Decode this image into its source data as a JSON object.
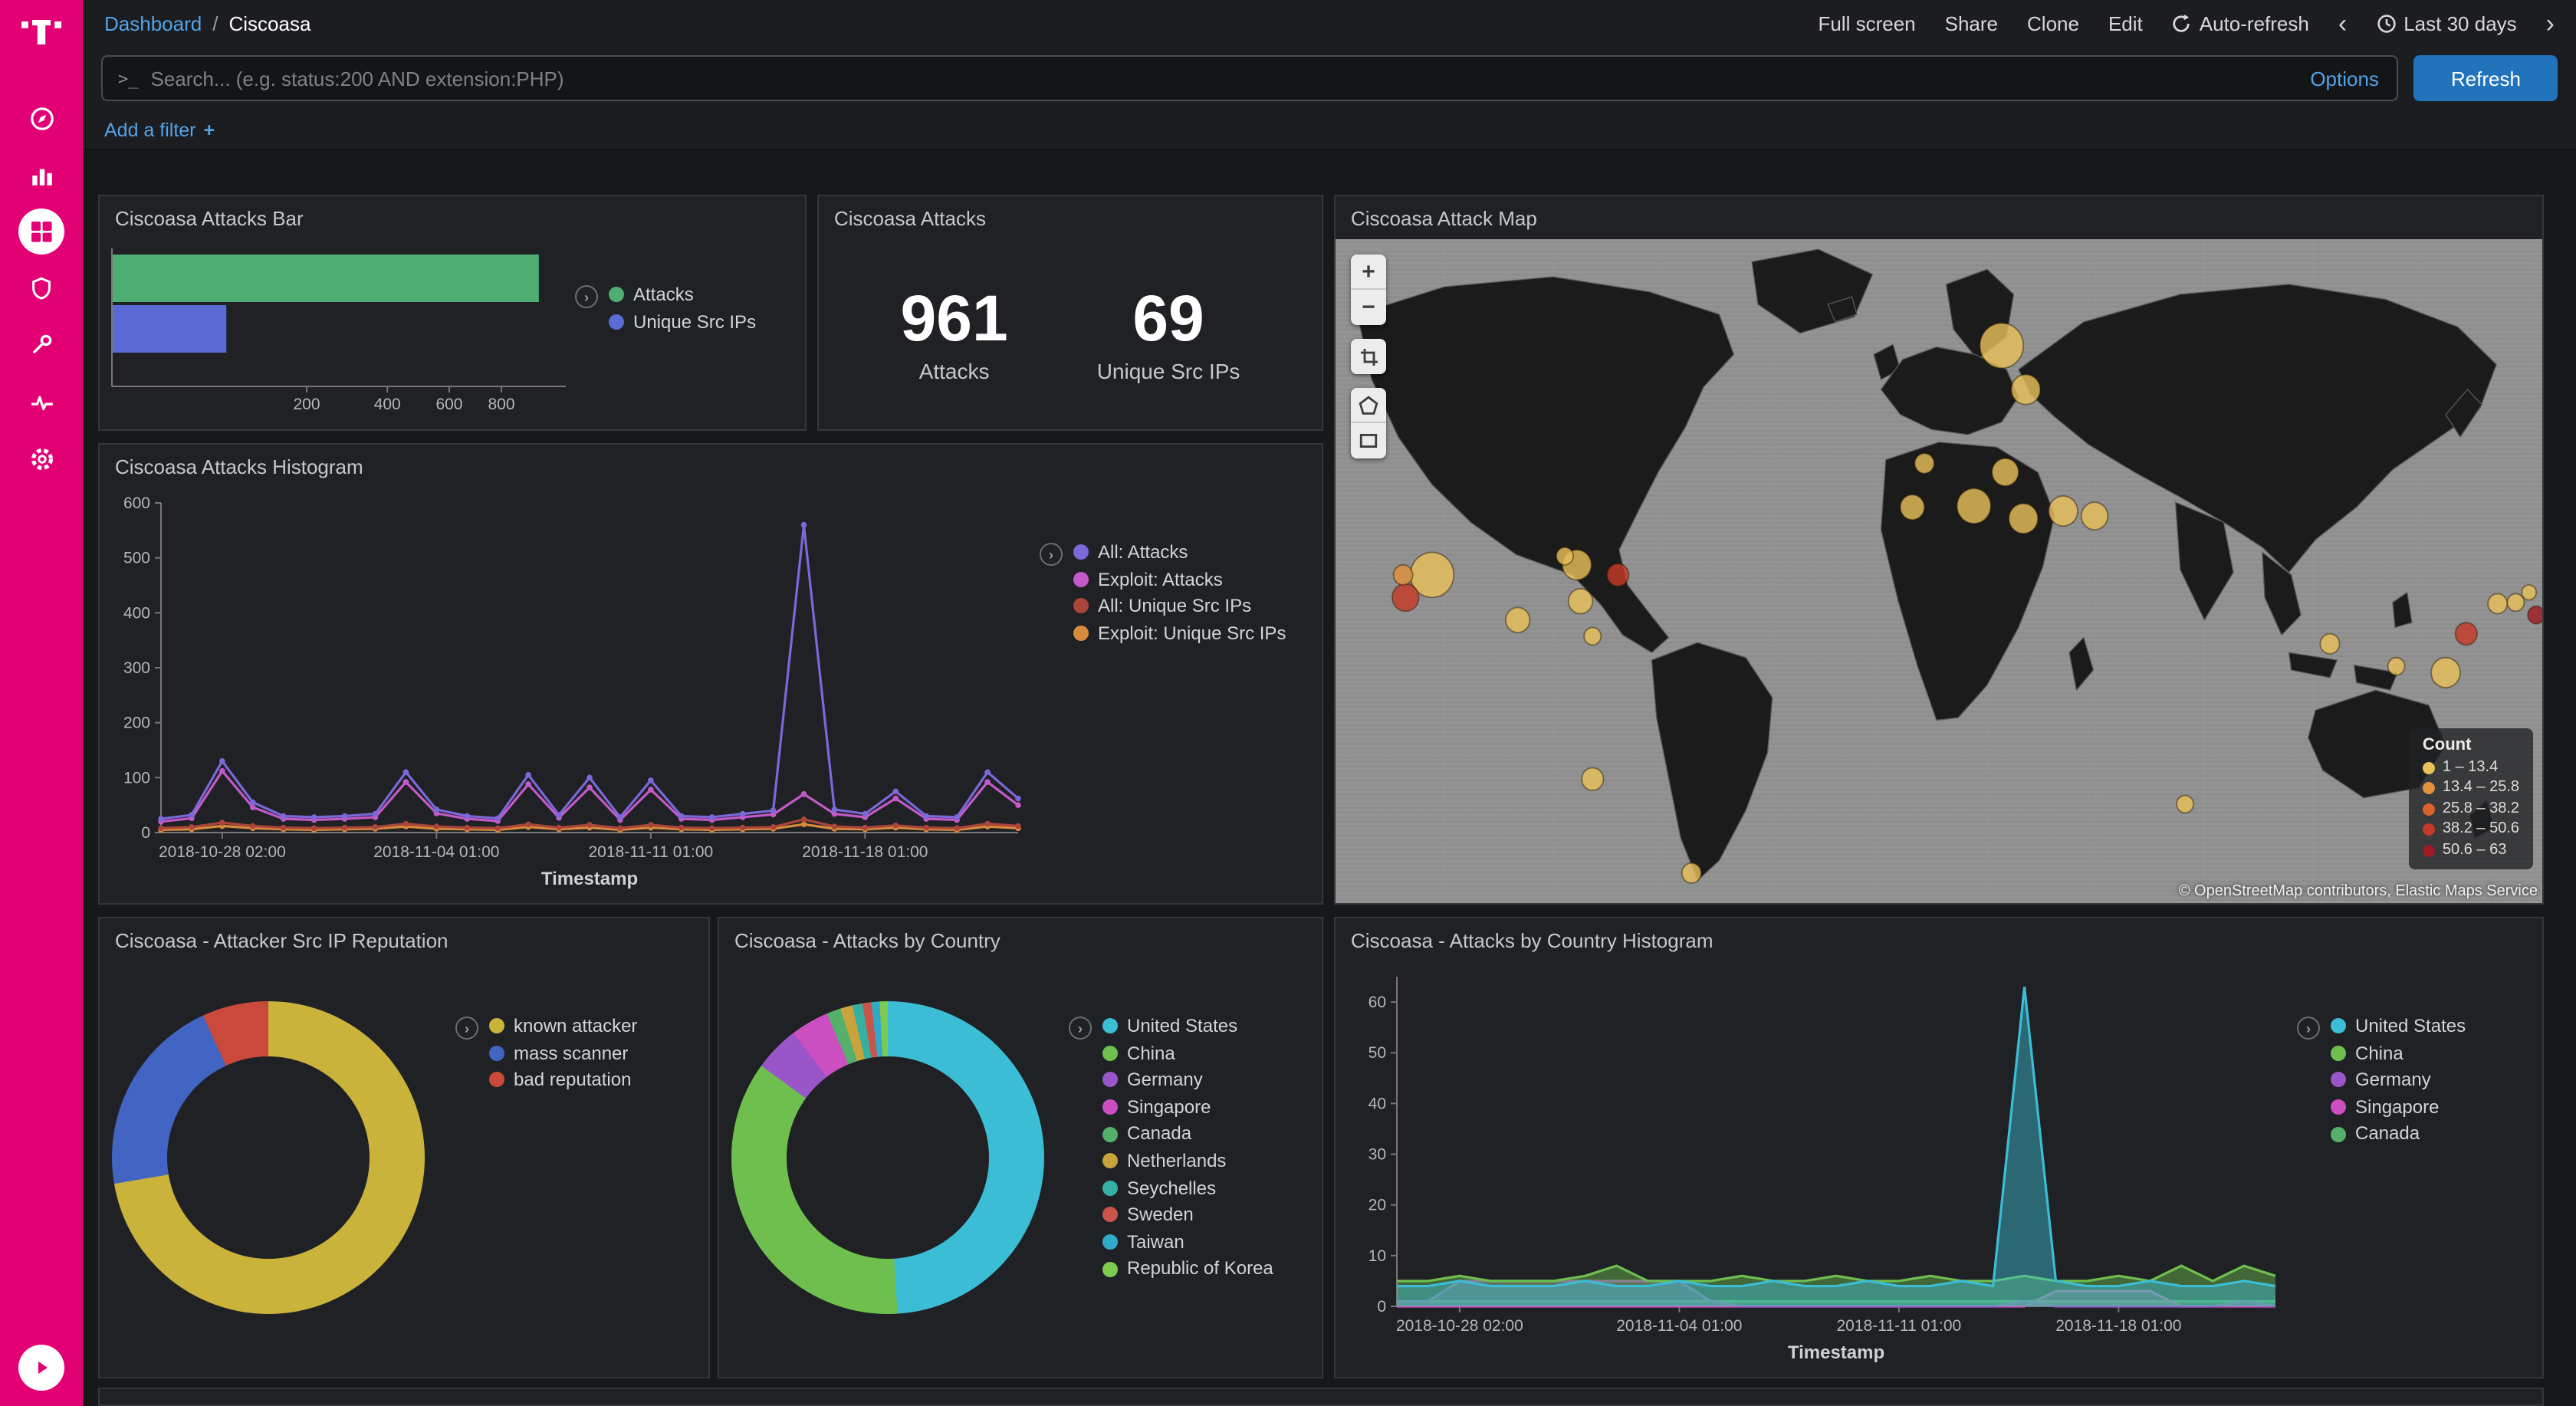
{
  "colors": {
    "brand_magenta": "#e20074",
    "link_blue": "#54a3e8",
    "refresh_button": "#2173bc",
    "panel_bg": "#1f2124"
  },
  "topnav": {
    "breadcrumb": {
      "root": "Dashboard",
      "separator": "/",
      "current": "Ciscoasa"
    },
    "actions": {
      "full_screen": "Full screen",
      "share": "Share",
      "clone": "Clone",
      "edit": "Edit",
      "auto_refresh": "Auto-refresh",
      "time_range": "Last 30 days"
    }
  },
  "search": {
    "placeholder": "Search... (e.g. status:200 AND extension:PHP)",
    "options": "Options",
    "refresh": "Refresh"
  },
  "filters": {
    "add_filter": "Add a filter",
    "plus": "+"
  },
  "panels": {
    "attacks_bar": {
      "title": "Ciscoasa Attacks Bar"
    },
    "attacks_metric": {
      "title": "Ciscoasa Attacks"
    },
    "attack_map": {
      "title": "Ciscoasa Attack Map"
    },
    "attacks_histogram": {
      "title": "Ciscoasa Attacks Histogram"
    },
    "src_ip_reputation": {
      "title": "Ciscoasa - Attacker Src IP Reputation"
    },
    "attacks_by_country": {
      "title": "Ciscoasa - Attacks by Country"
    },
    "attacks_by_country_histogram": {
      "title": "Ciscoasa - Attacks by Country Histogram"
    }
  },
  "chart_data": [
    {
      "id": "attacks-bar",
      "type": "bar",
      "orientation": "horizontal",
      "scale": "sqrt",
      "categories": [
        "Attacks",
        "Unique Src IPs"
      ],
      "values": [
        961,
        69
      ],
      "colors": [
        "#4faf72",
        "#5b6bd5"
      ],
      "xticks": [
        200,
        400,
        600,
        800
      ],
      "xmax": 1000,
      "legend": [
        {
          "label": "Attacks",
          "color": "#4faf72"
        },
        {
          "label": "Unique Src IPs",
          "color": "#5b6bd5"
        }
      ]
    },
    {
      "id": "attacks-metric",
      "type": "metric",
      "metrics": [
        {
          "value": "961",
          "label": "Attacks"
        },
        {
          "value": "69",
          "label": "Unique Src IPs"
        }
      ]
    },
    {
      "id": "attack-map",
      "type": "map",
      "controls": {
        "zoom_in": "+",
        "zoom_out": "−"
      },
      "legend_title": "Count",
      "legend": [
        {
          "label": "1 – 13.4",
          "color": "#e7c05a"
        },
        {
          "label": "13.4 – 25.8",
          "color": "#e0913a"
        },
        {
          "label": "25.8 – 38.2",
          "color": "#d8612f"
        },
        {
          "label": "38.2 – 50.6",
          "color": "#c43a28"
        },
        {
          "label": "50.6 – 63",
          "color": "#9e1b23"
        }
      ],
      "attribution": "© OpenStreetMap contributors, Elastic Maps Service",
      "markers": [
        {
          "x": 80,
          "y": 268,
          "r": 18,
          "color": "#e8c05a"
        },
        {
          "x": 58,
          "y": 286,
          "r": 11,
          "color": "#c43a28"
        },
        {
          "x": 56,
          "y": 268,
          "r": 8,
          "color": "#e0913a"
        },
        {
          "x": 151,
          "y": 304,
          "r": 10,
          "color": "#e8c05a"
        },
        {
          "x": 200,
          "y": 260,
          "r": 12,
          "color": "#e8c05a"
        },
        {
          "x": 203,
          "y": 289,
          "r": 10,
          "color": "#e8c05a"
        },
        {
          "x": 234,
          "y": 268,
          "r": 9,
          "color": "#c43a28"
        },
        {
          "x": 213,
          "y": 317,
          "r": 7,
          "color": "#e8c05a"
        },
        {
          "x": 190,
          "y": 253,
          "r": 7,
          "color": "#e8c05a"
        },
        {
          "x": 213,
          "y": 431,
          "r": 9,
          "color": "#e8c05a"
        },
        {
          "x": 295,
          "y": 506,
          "r": 8,
          "color": "#e8c05a"
        },
        {
          "x": 552,
          "y": 85,
          "r": 18,
          "color": "#e8c05a"
        },
        {
          "x": 572,
          "y": 120,
          "r": 12,
          "color": "#e8c05a"
        },
        {
          "x": 555,
          "y": 186,
          "r": 11,
          "color": "#e8c05a"
        },
        {
          "x": 478,
          "y": 214,
          "r": 10,
          "color": "#e8c05a"
        },
        {
          "x": 529,
          "y": 213,
          "r": 14,
          "color": "#e8c05a"
        },
        {
          "x": 570,
          "y": 223,
          "r": 12,
          "color": "#e8c05a"
        },
        {
          "x": 603,
          "y": 217,
          "r": 12,
          "color": "#e8c05a"
        },
        {
          "x": 629,
          "y": 221,
          "r": 11,
          "color": "#e8c05a"
        },
        {
          "x": 488,
          "y": 179,
          "r": 8,
          "color": "#e8c05a"
        },
        {
          "x": 704,
          "y": 451,
          "r": 7,
          "color": "#e8c05a"
        },
        {
          "x": 824,
          "y": 323,
          "r": 8,
          "color": "#e8c05a"
        },
        {
          "x": 879,
          "y": 341,
          "r": 7,
          "color": "#e8c05a"
        },
        {
          "x": 920,
          "y": 346,
          "r": 12,
          "color": "#e8c05a"
        },
        {
          "x": 937,
          "y": 315,
          "r": 9,
          "color": "#c43a28"
        },
        {
          "x": 963,
          "y": 291,
          "r": 8,
          "color": "#e8c05a"
        },
        {
          "x": 978,
          "y": 290,
          "r": 7,
          "color": "#e8c05a"
        },
        {
          "x": 995,
          "y": 300,
          "r": 7,
          "color": "#9e1b23"
        },
        {
          "x": 989,
          "y": 282,
          "r": 6,
          "color": "#e8c05a"
        }
      ]
    },
    {
      "id": "attacks-histogram",
      "type": "line",
      "xlabel": "Timestamp",
      "ylim": [
        0,
        600
      ],
      "yticks": [
        0,
        100,
        200,
        300,
        400,
        500,
        600
      ],
      "xticks": {
        "labels": [
          "2018-10-28 02:00",
          "2018-11-04 01:00",
          "2018-11-11 01:00",
          "2018-11-18 01:00"
        ],
        "index": [
          2,
          9,
          16,
          23
        ]
      },
      "points": 29,
      "series": [
        {
          "name": "All: Attacks",
          "color": "#7b68d9",
          "values": [
            25,
            32,
            130,
            55,
            30,
            28,
            30,
            34,
            110,
            42,
            30,
            26,
            105,
            32,
            100,
            28,
            95,
            30,
            28,
            34,
            40,
            560,
            42,
            34,
            75,
            30,
            28,
            110,
            62
          ]
        },
        {
          "name": "Exploit: Attacks",
          "color": "#c459c9",
          "values": [
            20,
            26,
            112,
            46,
            25,
            23,
            25,
            28,
            92,
            35,
            25,
            21,
            88,
            27,
            82,
            23,
            78,
            25,
            23,
            28,
            33,
            70,
            34,
            28,
            62,
            25,
            23,
            92,
            50
          ]
        },
        {
          "name": "All: Unique Src IPs",
          "color": "#a9453b",
          "values": [
            8,
            10,
            18,
            12,
            9,
            8,
            9,
            10,
            16,
            11,
            9,
            8,
            15,
            9,
            14,
            8,
            14,
            9,
            8,
            9,
            10,
            24,
            11,
            9,
            13,
            9,
            8,
            16,
            12
          ]
        },
        {
          "name": "Exploit: Unique Src IPs",
          "color": "#d98b3c",
          "values": [
            5,
            6,
            12,
            8,
            6,
            5,
            6,
            7,
            11,
            7,
            6,
            5,
            10,
            6,
            9,
            5,
            9,
            6,
            5,
            6,
            7,
            15,
            7,
            6,
            9,
            6,
            5,
            11,
            8
          ]
        }
      ]
    },
    {
      "id": "src-ip-reputation",
      "type": "pie",
      "donut": true,
      "slices": [
        {
          "label": "known attacker",
          "value": 695,
          "color": "#c9b33b"
        },
        {
          "label": "mass scanner",
          "value": 200,
          "color": "#4265c4"
        },
        {
          "label": "bad reputation",
          "value": 66,
          "color": "#c94a3b"
        }
      ]
    },
    {
      "id": "attacks-by-country",
      "type": "pie",
      "donut": true,
      "slices": [
        {
          "label": "United States",
          "value": 470,
          "color": "#3bbdd6"
        },
        {
          "label": "China",
          "value": 345,
          "color": "#6fbf4f"
        },
        {
          "label": "Germany",
          "value": 45,
          "color": "#9a55c9"
        },
        {
          "label": "Singapore",
          "value": 38,
          "color": "#cc4fc2"
        },
        {
          "label": "Canada",
          "value": 14,
          "color": "#54b06a"
        },
        {
          "label": "Netherlands",
          "value": 12,
          "color": "#c9a33b"
        },
        {
          "label": "Seychelles",
          "value": 10,
          "color": "#35b1a4"
        },
        {
          "label": "Sweden",
          "value": 9,
          "color": "#c9554a"
        },
        {
          "label": "Taiwan",
          "value": 8,
          "color": "#31a9c9"
        },
        {
          "label": "Republic of Korea",
          "value": 8,
          "color": "#7ec94f"
        }
      ]
    },
    {
      "id": "attacks-by-country-histogram",
      "type": "area",
      "xlabel": "Timestamp",
      "ylim": [
        0,
        65
      ],
      "yticks": [
        0,
        10,
        20,
        30,
        40,
        50,
        60
      ],
      "xticks": {
        "labels": [
          "2018-10-28 02:00",
          "2018-11-04 01:00",
          "2018-11-11 01:00",
          "2018-11-18 01:00"
        ],
        "index": [
          2,
          9,
          16,
          23
        ]
      },
      "points": 29,
      "series": [
        {
          "name": "United States",
          "color": "#3bbdd6",
          "values": [
            4,
            4,
            5,
            4,
            4,
            4,
            5,
            4,
            4,
            5,
            4,
            4,
            5,
            4,
            4,
            5,
            4,
            4,
            5,
            4,
            63,
            5,
            4,
            4,
            5,
            4,
            4,
            5,
            4
          ]
        },
        {
          "name": "China",
          "color": "#6fbf4f",
          "values": [
            5,
            5,
            6,
            5,
            5,
            5,
            6,
            8,
            5,
            5,
            5,
            6,
            5,
            5,
            6,
            5,
            5,
            6,
            5,
            5,
            6,
            5,
            5,
            6,
            5,
            8,
            5,
            8,
            6
          ]
        },
        {
          "name": "Germany",
          "color": "#9a55c9",
          "values": [
            1,
            1,
            5,
            5,
            5,
            5,
            5,
            5,
            5,
            5,
            1,
            0,
            0,
            0,
            0,
            0,
            0,
            0,
            0,
            0,
            1,
            0,
            0,
            0,
            0,
            0,
            0,
            1,
            0
          ]
        },
        {
          "name": "Singapore",
          "color": "#cc4fc2",
          "values": [
            0,
            0,
            0,
            0,
            0,
            0,
            0,
            0,
            0,
            0,
            0,
            0,
            0,
            0,
            0,
            0,
            0,
            0,
            0,
            0,
            0,
            3,
            3,
            3,
            3,
            0,
            0,
            0,
            0
          ]
        },
        {
          "name": "Canada",
          "color": "#54b06a",
          "values": [
            1,
            1,
            1,
            1,
            1,
            1,
            1,
            1,
            1,
            1,
            1,
            1,
            1,
            1,
            1,
            1,
            1,
            1,
            1,
            1,
            1,
            1,
            1,
            1,
            1,
            1,
            1,
            1,
            1
          ]
        }
      ]
    }
  ]
}
